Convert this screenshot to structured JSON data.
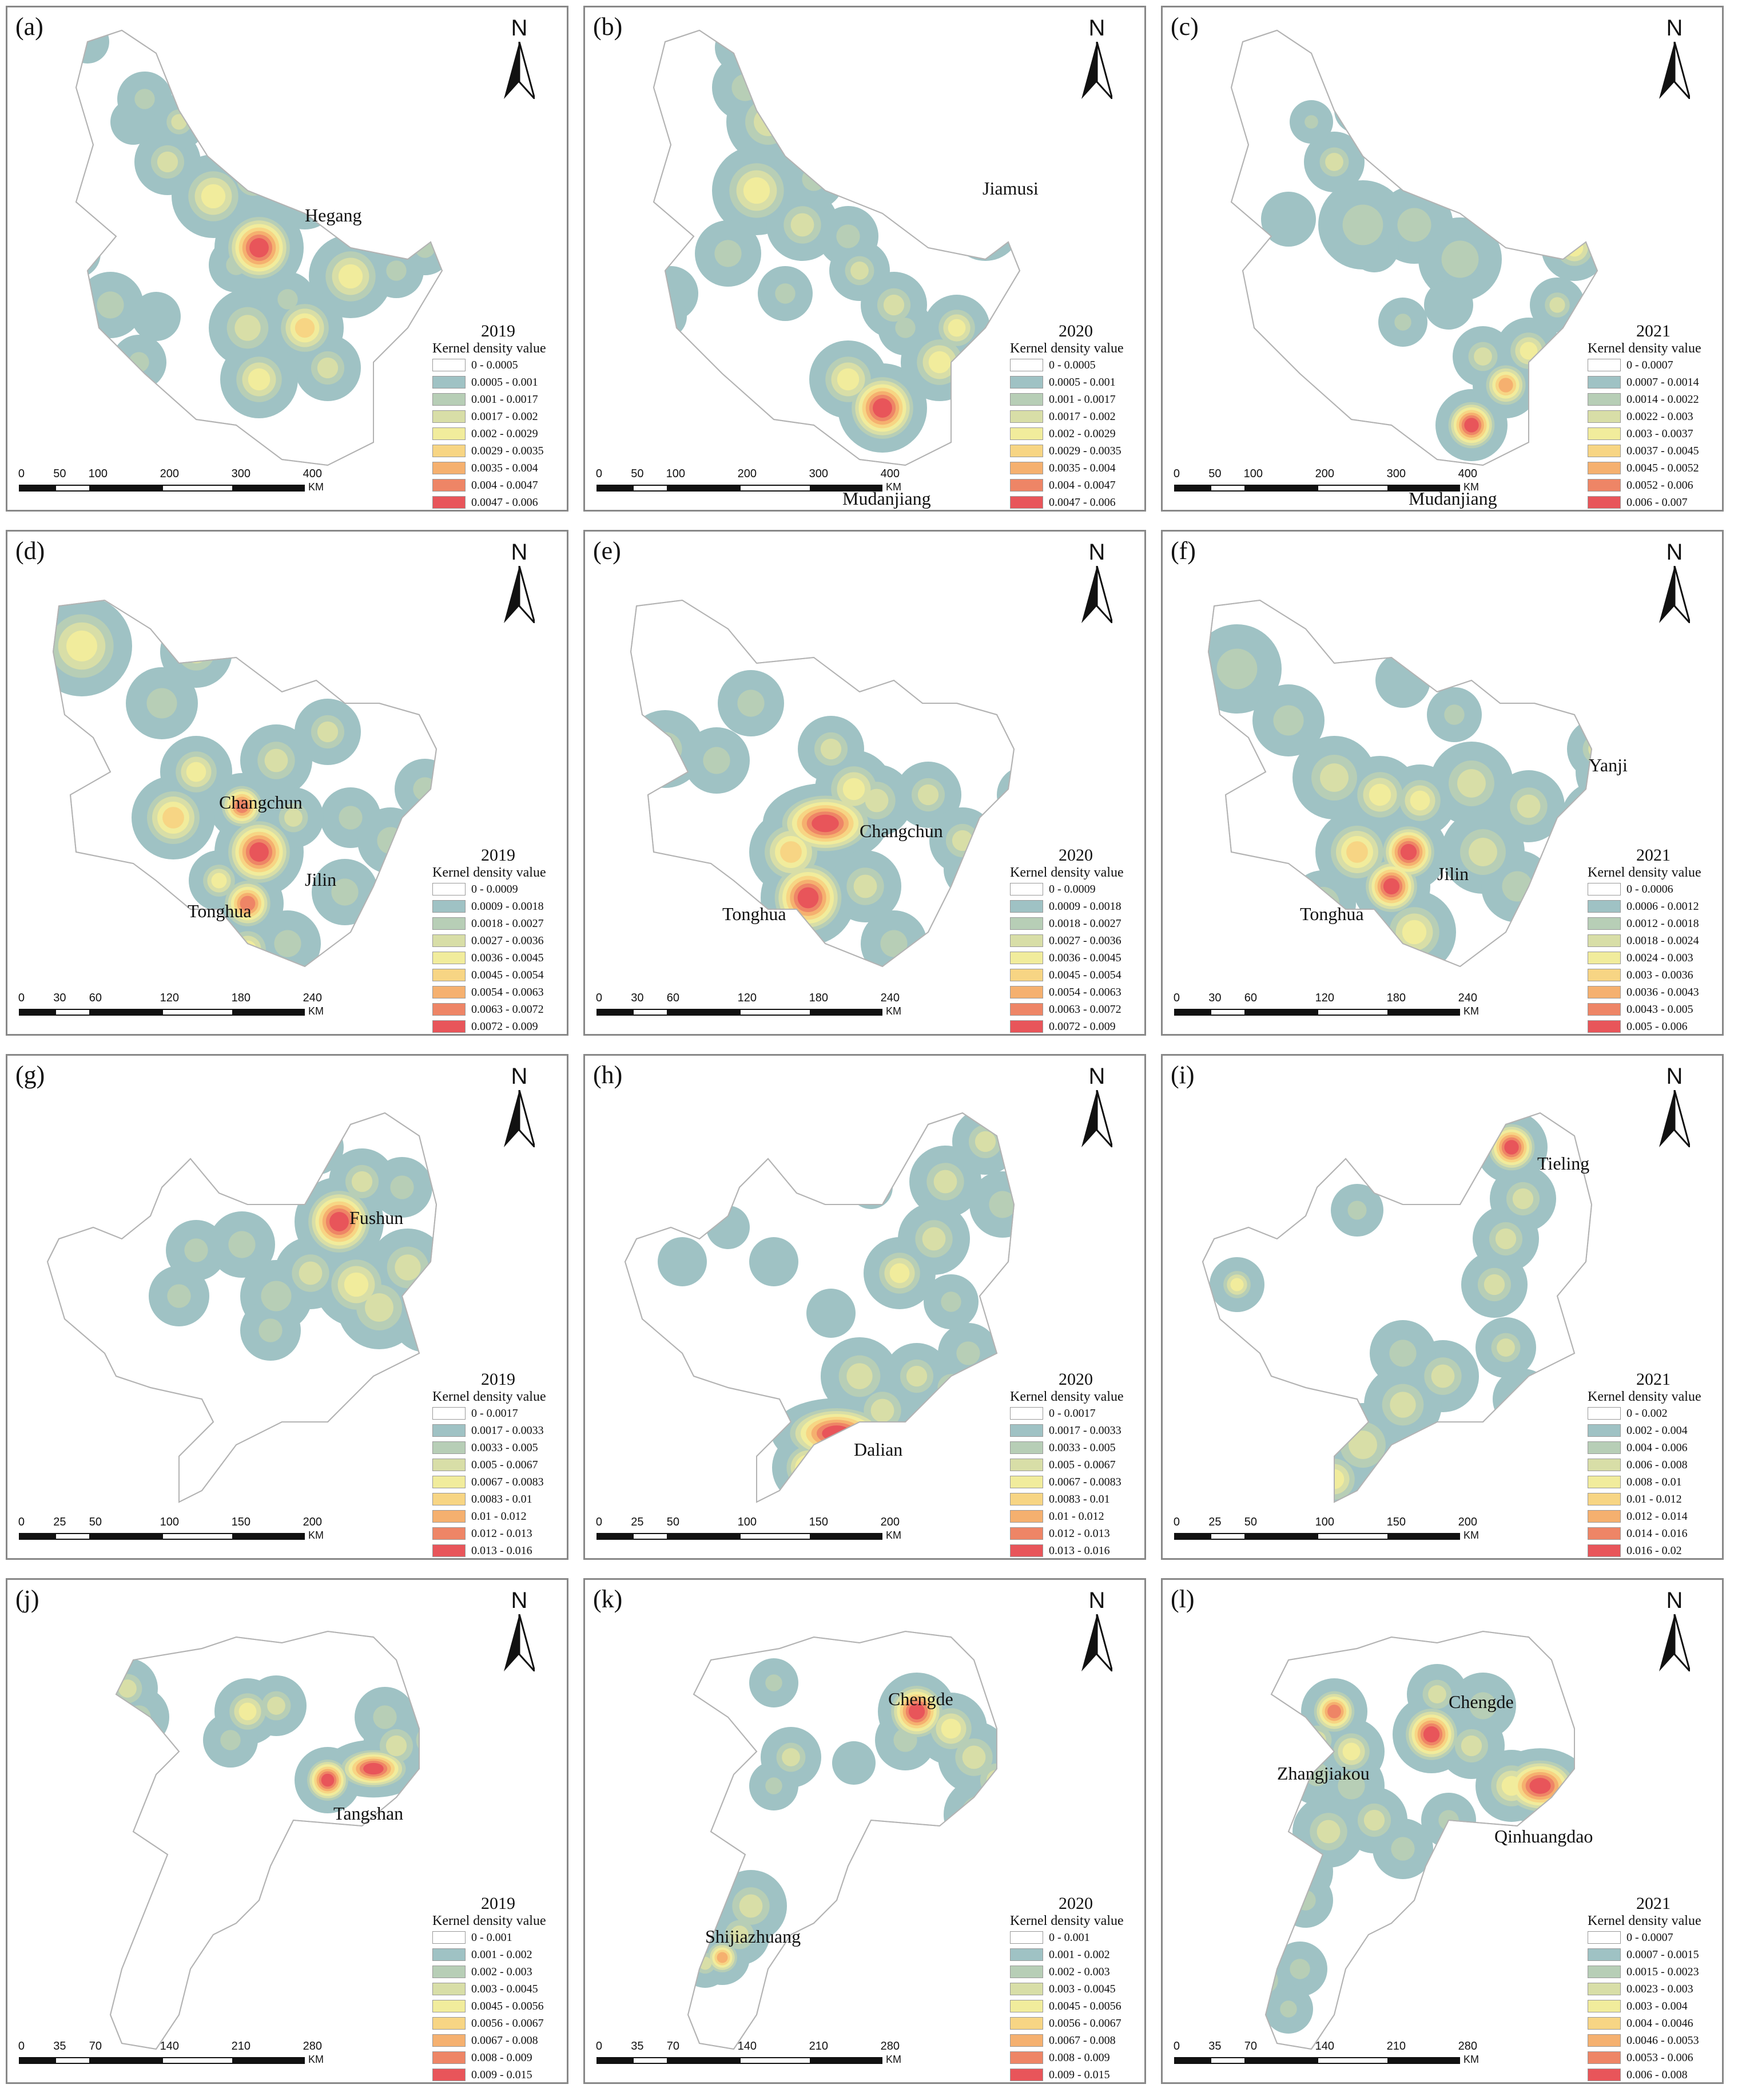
{
  "colors": {
    "ramp": [
      "#ffffff",
      "#9fc2c4",
      "#b7ceb6",
      "#d8dea7",
      "#f1ec9c",
      "#f7d584",
      "#f5b06f",
      "#ee8566",
      "#e8555a"
    ],
    "border": "#888888",
    "outline": "#b3b3b3"
  },
  "north_label": "N",
  "legend_title": "Kernel density value",
  "scale_unit": "KM",
  "panels": [
    {
      "label": "(a)",
      "year": "2019",
      "cities": [
        "Hegang"
      ],
      "ranges": [
        "0 - 0.0005",
        "0.0005 - 0.001",
        "0.001 - 0.0017",
        "0.0017 - 0.002",
        "0.002 - 0.0029",
        "0.0029 - 0.0035",
        "0.0035 - 0.004",
        "0.004 - 0.0047",
        "0.0047 - 0.006"
      ],
      "scale_ticks": [
        "0",
        "50",
        "100",
        "200",
        "300",
        "400"
      ]
    },
    {
      "label": "(b)",
      "year": "2020",
      "cities": [
        "Jiamusi",
        "Mudanjiang"
      ],
      "ranges": [
        "0 - 0.0005",
        "0.0005 - 0.001",
        "0.001 - 0.0017",
        "0.0017 - 0.002",
        "0.002 - 0.0029",
        "0.0029 - 0.0035",
        "0.0035 - 0.004",
        "0.004 - 0.0047",
        "0.0047 - 0.006"
      ],
      "scale_ticks": [
        "0",
        "50",
        "100",
        "200",
        "300",
        "400"
      ]
    },
    {
      "label": "(c)",
      "year": "2021",
      "cities": [
        "Mudanjiang"
      ],
      "ranges": [
        "0 - 0.0007",
        "0.0007 - 0.0014",
        "0.0014 - 0.0022",
        "0.0022 - 0.003",
        "0.003 - 0.0037",
        "0.0037 - 0.0045",
        "0.0045 - 0.0052",
        "0.0052 - 0.006",
        "0.006 - 0.007"
      ],
      "scale_ticks": [
        "0",
        "50",
        "100",
        "200",
        "300",
        "400"
      ]
    },
    {
      "label": "(d)",
      "year": "2019",
      "cities": [
        "Changchun",
        "Jilin",
        "Tonghua"
      ],
      "ranges": [
        "0 - 0.0009",
        "0.0009 - 0.0018",
        "0.0018 - 0.0027",
        "0.0027 - 0.0036",
        "0.0036 - 0.0045",
        "0.0045 - 0.0054",
        "0.0054 - 0.0063",
        "0.0063 - 0.0072",
        "0.0072 - 0.009"
      ],
      "scale_ticks": [
        "0",
        "30",
        "60",
        "120",
        "180",
        "240"
      ]
    },
    {
      "label": "(e)",
      "year": "2020",
      "cities": [
        "Changchun",
        "Tonghua"
      ],
      "ranges": [
        "0 - 0.0009",
        "0.0009 - 0.0018",
        "0.0018 - 0.0027",
        "0.0027 - 0.0036",
        "0.0036 - 0.0045",
        "0.0045 - 0.0054",
        "0.0054 - 0.0063",
        "0.0063 - 0.0072",
        "0.0072 - 0.009"
      ],
      "scale_ticks": [
        "0",
        "30",
        "60",
        "120",
        "180",
        "240"
      ]
    },
    {
      "label": "(f)",
      "year": "2021",
      "cities": [
        "Yanji",
        "Jilin",
        "Tonghua"
      ],
      "ranges": [
        "0 - 0.0006",
        "0.0006 - 0.0012",
        "0.0012 - 0.0018",
        "0.0018 - 0.0024",
        "0.0024 - 0.003",
        "0.003 - 0.0036",
        "0.0036 - 0.0043",
        "0.0043 - 0.005",
        "0.005 - 0.006"
      ],
      "scale_ticks": [
        "0",
        "30",
        "60",
        "120",
        "180",
        "240"
      ]
    },
    {
      "label": "(g)",
      "year": "2019",
      "cities": [
        "Fushun"
      ],
      "ranges": [
        "0 - 0.0017",
        "0.0017 - 0.0033",
        "0.0033 - 0.005",
        "0.005 - 0.0067",
        "0.0067 - 0.0083",
        "0.0083 - 0.01",
        "0.01 - 0.012",
        "0.012 - 0.013",
        "0.013 - 0.016"
      ],
      "scale_ticks": [
        "0",
        "25",
        "50",
        "100",
        "150",
        "200"
      ]
    },
    {
      "label": "(h)",
      "year": "2020",
      "cities": [
        "Dalian"
      ],
      "ranges": [
        "0 - 0.0017",
        "0.0017 - 0.0033",
        "0.0033 - 0.005",
        "0.005 - 0.0067",
        "0.0067 - 0.0083",
        "0.0083 - 0.01",
        "0.01 - 0.012",
        "0.012 - 0.013",
        "0.013 - 0.016"
      ],
      "scale_ticks": [
        "0",
        "25",
        "50",
        "100",
        "150",
        "200"
      ]
    },
    {
      "label": "(i)",
      "year": "2021",
      "cities": [
        "Tieling"
      ],
      "ranges": [
        "0 - 0.002",
        "0.002 - 0.004",
        "0.004 - 0.006",
        "0.006 - 0.008",
        "0.008 - 0.01",
        "0.01 - 0.012",
        "0.012 - 0.014",
        "0.014 - 0.016",
        "0.016 - 0.02"
      ],
      "scale_ticks": [
        "0",
        "25",
        "50",
        "100",
        "150",
        "200"
      ]
    },
    {
      "label": "(j)",
      "year": "2019",
      "cities": [
        "Tangshan"
      ],
      "ranges": [
        "0 - 0.001",
        "0.001 - 0.002",
        "0.002 - 0.003",
        "0.003 - 0.0045",
        "0.0045 - 0.0056",
        "0.0056 - 0.0067",
        "0.0067 - 0.008",
        "0.008 - 0.009",
        "0.009 - 0.015"
      ],
      "scale_ticks": [
        "0",
        "35",
        "70",
        "140",
        "210",
        "280"
      ]
    },
    {
      "label": "(k)",
      "year": "2020",
      "cities": [
        "Chengde",
        "Shijiazhuang"
      ],
      "ranges": [
        "0 - 0.001",
        "0.001 - 0.002",
        "0.002 - 0.003",
        "0.003 - 0.0045",
        "0.0045 - 0.0056",
        "0.0056 - 0.0067",
        "0.0067 - 0.008",
        "0.008 - 0.009",
        "0.009 - 0.015"
      ],
      "scale_ticks": [
        "0",
        "35",
        "70",
        "140",
        "210",
        "280"
      ]
    },
    {
      "label": "(l)",
      "year": "2021",
      "cities": [
        "Chengde",
        "Zhangjiakou",
        "Qinhuangdao"
      ],
      "ranges": [
        "0 - 0.0007",
        "0.0007 - 0.0015",
        "0.0015 - 0.0023",
        "0.0023 - 0.003",
        "0.003 - 0.004",
        "0.004 - 0.0046",
        "0.0046 - 0.0053",
        "0.0053 - 0.006",
        "0.006 - 0.008"
      ],
      "scale_ticks": [
        "0",
        "35",
        "70",
        "140",
        "210",
        "280"
      ]
    }
  ]
}
